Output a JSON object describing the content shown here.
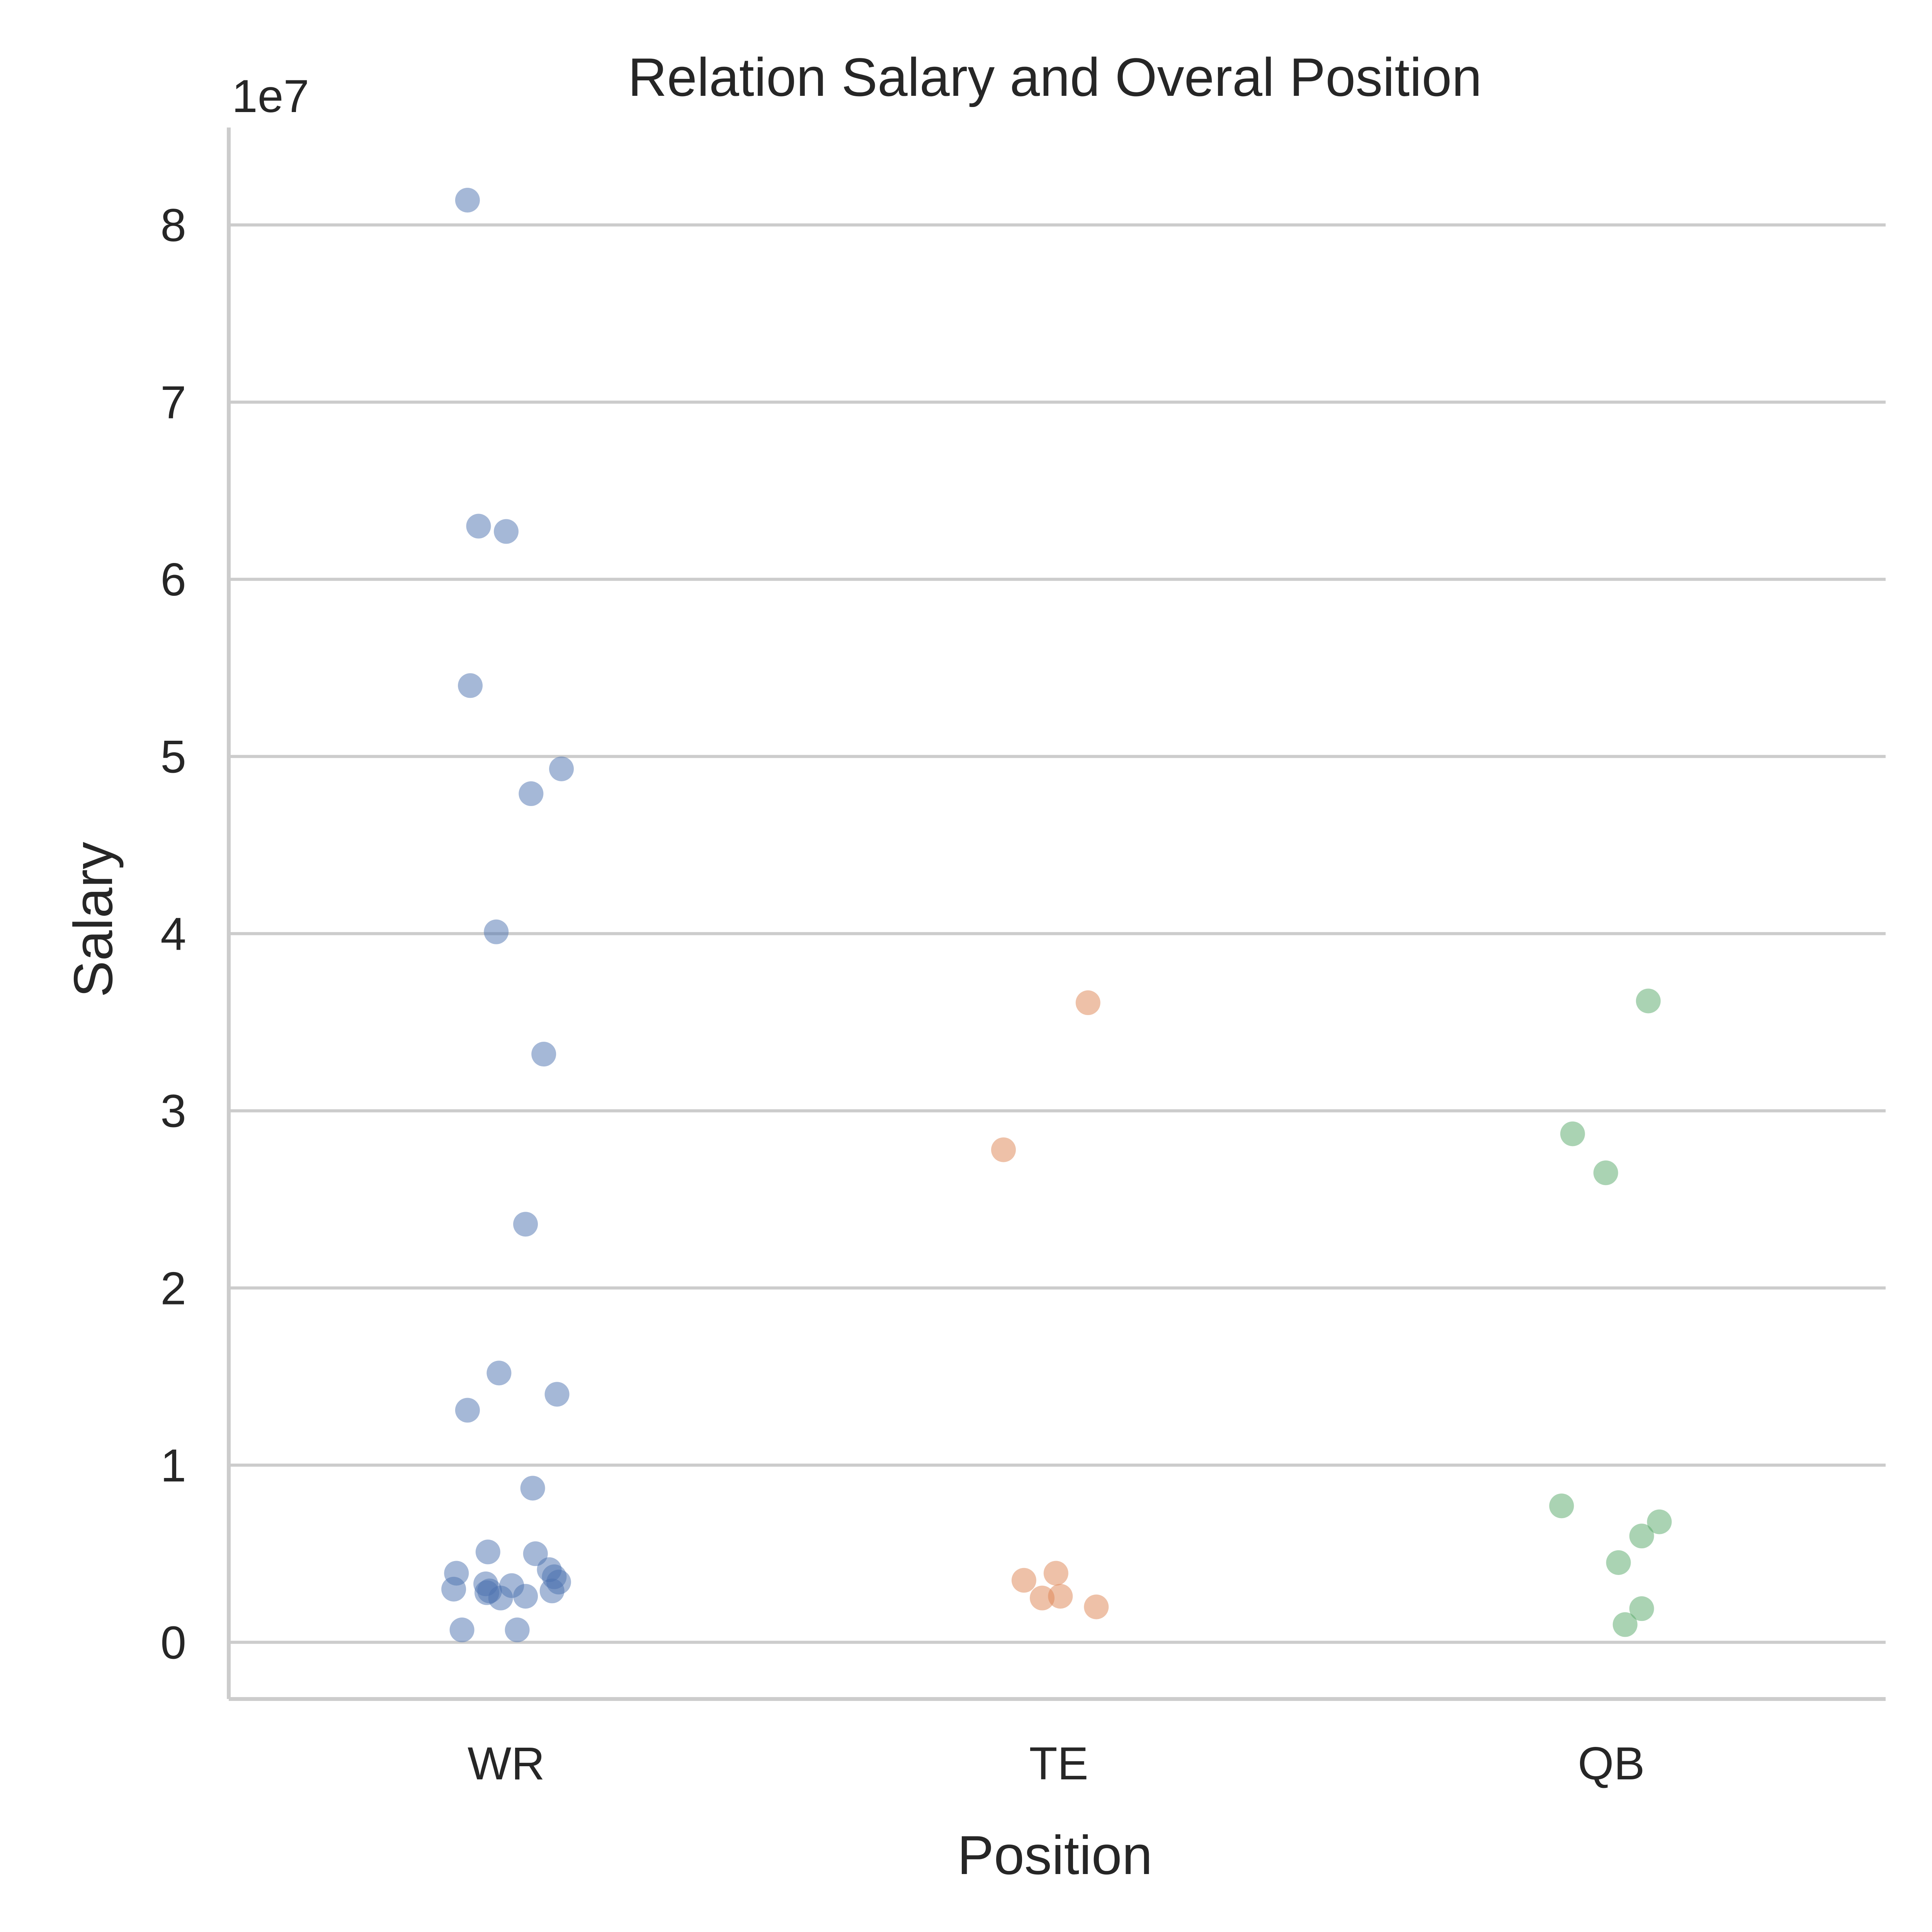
{
  "chart_data": {
    "type": "scatter",
    "subtype": "strip",
    "title": "Relation Salary and Overal Position",
    "xlabel": "Position",
    "ylabel": "Salary",
    "y_offset_label": "1e7",
    "y_scale_factor": 10000000,
    "categories": [
      "WR",
      "TE",
      "QB"
    ],
    "ylim": [
      -3200000,
      85500000
    ],
    "yticks": [
      0,
      10000000,
      20000000,
      30000000,
      40000000,
      50000000,
      60000000,
      70000000,
      80000000
    ],
    "ytick_labels": [
      "0",
      "1",
      "2",
      "3",
      "4",
      "5",
      "6",
      "7",
      "8"
    ],
    "grid": "horizontal",
    "series": [
      {
        "category": "WR",
        "color": "#4c72b0",
        "points": [
          {
            "jitter": -0.07,
            "y": 81400000
          },
          {
            "jitter": -0.05,
            "y": 63000000
          },
          {
            "jitter": 0.0,
            "y": 62700000
          },
          {
            "jitter": -0.065,
            "y": 54000000
          },
          {
            "jitter": 0.1,
            "y": 49300000
          },
          {
            "jitter": 0.045,
            "y": 47900000
          },
          {
            "jitter": -0.018,
            "y": 40100000
          },
          {
            "jitter": 0.068,
            "y": 33200000
          },
          {
            "jitter": 0.035,
            "y": 23600000
          },
          {
            "jitter": -0.013,
            "y": 15200000
          },
          {
            "jitter": 0.092,
            "y": 14000000
          },
          {
            "jitter": -0.07,
            "y": 13100000
          },
          {
            "jitter": 0.048,
            "y": 8700000
          },
          {
            "jitter": -0.033,
            "y": 5100000
          },
          {
            "jitter": 0.053,
            "y": 5000000
          },
          {
            "jitter": 0.078,
            "y": 4100000
          },
          {
            "jitter": -0.09,
            "y": 3900000
          },
          {
            "jitter": 0.087,
            "y": 3700000
          },
          {
            "jitter": 0.095,
            "y": 3400000
          },
          {
            "jitter": -0.037,
            "y": 3300000
          },
          {
            "jitter": 0.01,
            "y": 3200000
          },
          {
            "jitter": -0.095,
            "y": 3000000
          },
          {
            "jitter": -0.03,
            "y": 2900000
          },
          {
            "jitter": 0.083,
            "y": 2900000
          },
          {
            "jitter": -0.035,
            "y": 2800000
          },
          {
            "jitter": 0.035,
            "y": 2600000
          },
          {
            "jitter": -0.01,
            "y": 2500000
          },
          {
            "jitter": -0.08,
            "y": 700000
          },
          {
            "jitter": 0.02,
            "y": 700000
          }
        ]
      },
      {
        "category": "TE",
        "color": "#dd8452",
        "points": [
          {
            "jitter": 0.053,
            "y": 36100000
          },
          {
            "jitter": -0.1,
            "y": 27800000
          },
          {
            "jitter": -0.005,
            "y": 3900000
          },
          {
            "jitter": -0.063,
            "y": 3500000
          },
          {
            "jitter": 0.003,
            "y": 2600000
          },
          {
            "jitter": -0.03,
            "y": 2500000
          },
          {
            "jitter": 0.068,
            "y": 2000000
          }
        ]
      },
      {
        "category": "QB",
        "color": "#55a868",
        "points": [
          {
            "jitter": 0.067,
            "y": 36200000
          },
          {
            "jitter": -0.07,
            "y": 28700000
          },
          {
            "jitter": -0.01,
            "y": 26500000
          },
          {
            "jitter": -0.09,
            "y": 7700000
          },
          {
            "jitter": 0.087,
            "y": 6800000
          },
          {
            "jitter": 0.055,
            "y": 6000000
          },
          {
            "jitter": 0.013,
            "y": 4500000
          },
          {
            "jitter": 0.055,
            "y": 1900000
          },
          {
            "jitter": 0.025,
            "y": 1000000
          }
        ]
      }
    ]
  }
}
